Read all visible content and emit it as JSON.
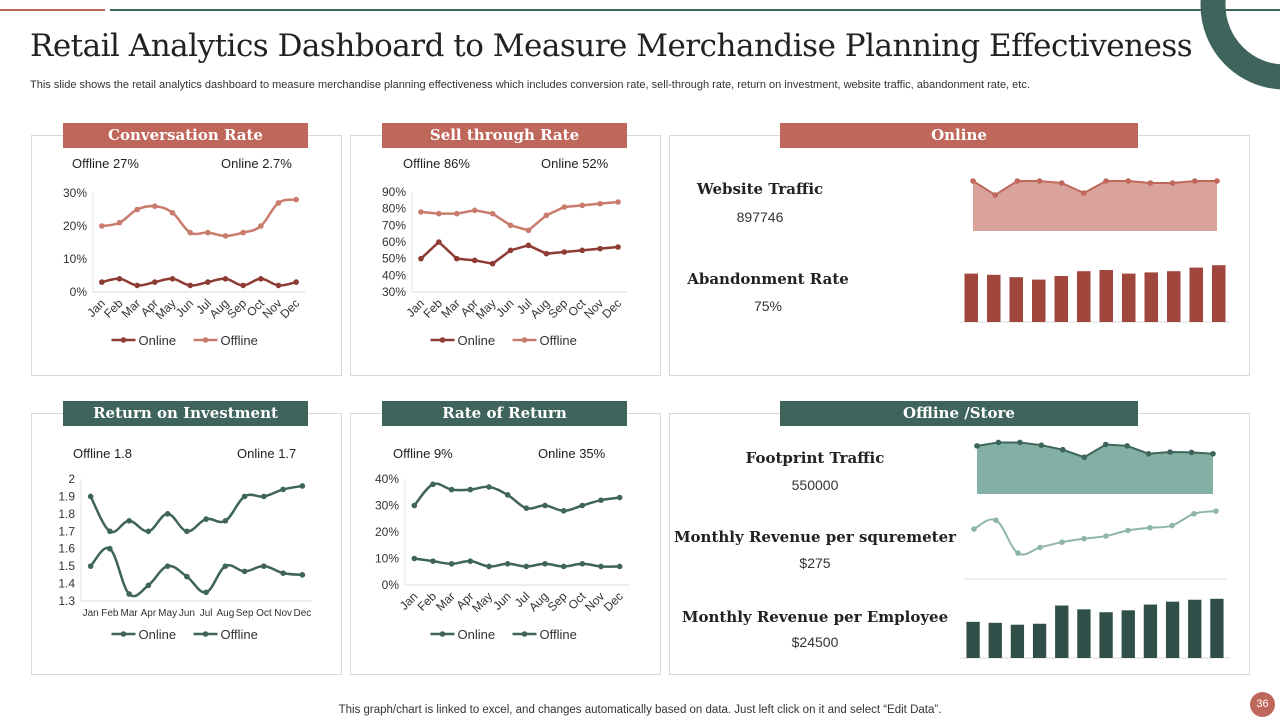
{
  "title": "Retail Analytics Dashboard to Measure Merchandise Planning Effectiveness",
  "subtitle": "This slide shows the retail analytics dashboard to measure merchandise planning effectiveness which includes conversion rate, sell-through rate, return on investment, website traffic, abandonment rate, etc.",
  "footer": "This graph/chart is linked to excel,  and changes automatically based on data. Just left click on it and select “Edit Data”.",
  "page_number": "36",
  "colors": {
    "red": "#c0675b",
    "green": "#3e645c",
    "online_red": "#8e3b33",
    "offline_red": "#c97c6d",
    "line_green": "#3e645c",
    "light_green": "#8fb5ab"
  },
  "panels": {
    "conv": {
      "label": "Conversation Rate",
      "offline": "Offline  27%",
      "online": "Online  2.7%"
    },
    "sell": {
      "label": "Sell through Rate",
      "offline": "Offline  86%",
      "online": "Online  52%"
    },
    "online": {
      "label": "Online",
      "m1": "Website Traffic",
      "v1": "897746",
      "m2": "Abandonment Rate",
      "v2": "75%"
    },
    "roi": {
      "label": "Return on Investment",
      "offline": "Offline  1.8",
      "online": "Online  1.7"
    },
    "ror": {
      "label": "Rate of Return",
      "offline": "Offline   9%",
      "online": "Online   35%"
    },
    "store": {
      "label": "Offline /Store",
      "m1": "Footprint Traffic",
      "v1": "550000",
      "m2": "Monthly Revenue per squremeter",
      "v2": "$275",
      "m3": "Monthly Revenue per Employee",
      "v3": "$24500"
    }
  },
  "chart_data": [
    {
      "id": "conv",
      "type": "line",
      "title": "Conversation Rate",
      "categories": [
        "Jan",
        "Feb",
        "Mar",
        "Apr",
        "May",
        "Jun",
        "Jul",
        "Aug",
        "Sep",
        "Oct",
        "Nov",
        "Dec"
      ],
      "yticks": [
        "0%",
        "10%",
        "20%",
        "30%"
      ],
      "ylim": [
        0,
        30
      ],
      "legend": "bottom",
      "series": [
        {
          "name": "Online",
          "values": [
            3,
            4,
            2,
            3,
            4,
            2,
            3,
            4,
            2,
            4,
            2,
            3
          ]
        },
        {
          "name": "Offline",
          "values": [
            20,
            21,
            25,
            26,
            24,
            18,
            18,
            17,
            18,
            20,
            27,
            28
          ]
        }
      ]
    },
    {
      "id": "sell",
      "type": "line",
      "title": "Sell through Rate",
      "categories": [
        "Jan",
        "Feb",
        "Mar",
        "Apr",
        "May",
        "Jun",
        "Jul",
        "Aug",
        "Sep",
        "Oct",
        "Nov",
        "Dec"
      ],
      "yticks": [
        "30%",
        "40%",
        "50%",
        "60%",
        "70%",
        "80%",
        "90%"
      ],
      "ylim": [
        30,
        90
      ],
      "legend": "bottom",
      "series": [
        {
          "name": "Online",
          "values": [
            50,
            60,
            50,
            49,
            47,
            55,
            58,
            53,
            54,
            55,
            56,
            57
          ]
        },
        {
          "name": "Offline",
          "values": [
            78,
            77,
            77,
            79,
            77,
            70,
            67,
            76,
            81,
            82,
            83,
            84
          ]
        }
      ]
    },
    {
      "id": "roi",
      "type": "line",
      "title": "Return on Investment",
      "categories": [
        "Jan",
        "Feb",
        "Mar",
        "Apr",
        "May",
        "Jun",
        "Jul",
        "Aug",
        "Sep",
        "Oct",
        "Nov",
        "Dec"
      ],
      "yticks": [
        "1.3",
        "1.4",
        "1.5",
        "1.6",
        "1.7",
        "1.8",
        "1.9",
        "2"
      ],
      "ylim": [
        1.3,
        2
      ],
      "legend": "bottom",
      "series": [
        {
          "name": "Online",
          "values": [
            1.9,
            1.7,
            1.76,
            1.7,
            1.8,
            1.7,
            1.77,
            1.76,
            1.9,
            1.9,
            1.94,
            1.96
          ]
        },
        {
          "name": "Offline",
          "values": [
            1.5,
            1.6,
            1.34,
            1.39,
            1.5,
            1.44,
            1.35,
            1.5,
            1.47,
            1.5,
            1.46,
            1.45
          ]
        }
      ]
    },
    {
      "id": "ror",
      "type": "line",
      "title": "Rate of Return",
      "categories": [
        "Jan",
        "Feb",
        "Mar",
        "Apr",
        "May",
        "Jun",
        "Jul",
        "Aug",
        "Sep",
        "Oct",
        "Nov",
        "Dec"
      ],
      "yticks": [
        "0%",
        "10%",
        "20%",
        "30%",
        "40%"
      ],
      "ylim": [
        0,
        40
      ],
      "legend": "bottom",
      "series": [
        {
          "name": "Online",
          "values": [
            30,
            38,
            36,
            36,
            37,
            34,
            29,
            30,
            28,
            30,
            32,
            33
          ]
        },
        {
          "name": "Offline",
          "values": [
            10,
            9,
            8,
            9,
            7,
            8,
            7,
            8,
            7,
            8,
            7,
            7
          ]
        }
      ]
    },
    {
      "id": "traffic",
      "type": "area",
      "title": "Website Traffic",
      "ylim": [
        70,
        100
      ],
      "values": [
        95,
        88,
        95,
        95,
        94,
        89,
        95,
        95,
        94,
        94,
        95,
        95
      ]
    },
    {
      "id": "abandon",
      "type": "bar",
      "title": "Abandonment Rate",
      "ylim": [
        0,
        150
      ],
      "values": [
        121,
        118,
        112,
        106,
        115,
        127,
        130,
        121,
        124,
        127,
        136,
        142
      ]
    },
    {
      "id": "footprint",
      "type": "area",
      "title": "Footprint Traffic",
      "ylim": [
        0,
        160
      ],
      "values": [
        140,
        150,
        150,
        142,
        129,
        107,
        144,
        140,
        117,
        122,
        121,
        117
      ]
    },
    {
      "id": "revsqm",
      "type": "line",
      "title": "Monthly Revenue per squremeter",
      "ylim": [
        0,
        160
      ],
      "values": [
        105,
        125,
        50,
        63,
        75,
        83,
        89,
        102,
        108,
        113,
        140,
        146
      ]
    },
    {
      "id": "revemp",
      "type": "bar",
      "title": "Monthly Revenue per Employee",
      "ylim": [
        0,
        200
      ],
      "values": [
        113,
        110,
        104,
        107,
        164,
        152,
        143,
        149,
        167,
        176,
        182,
        185
      ]
    }
  ]
}
